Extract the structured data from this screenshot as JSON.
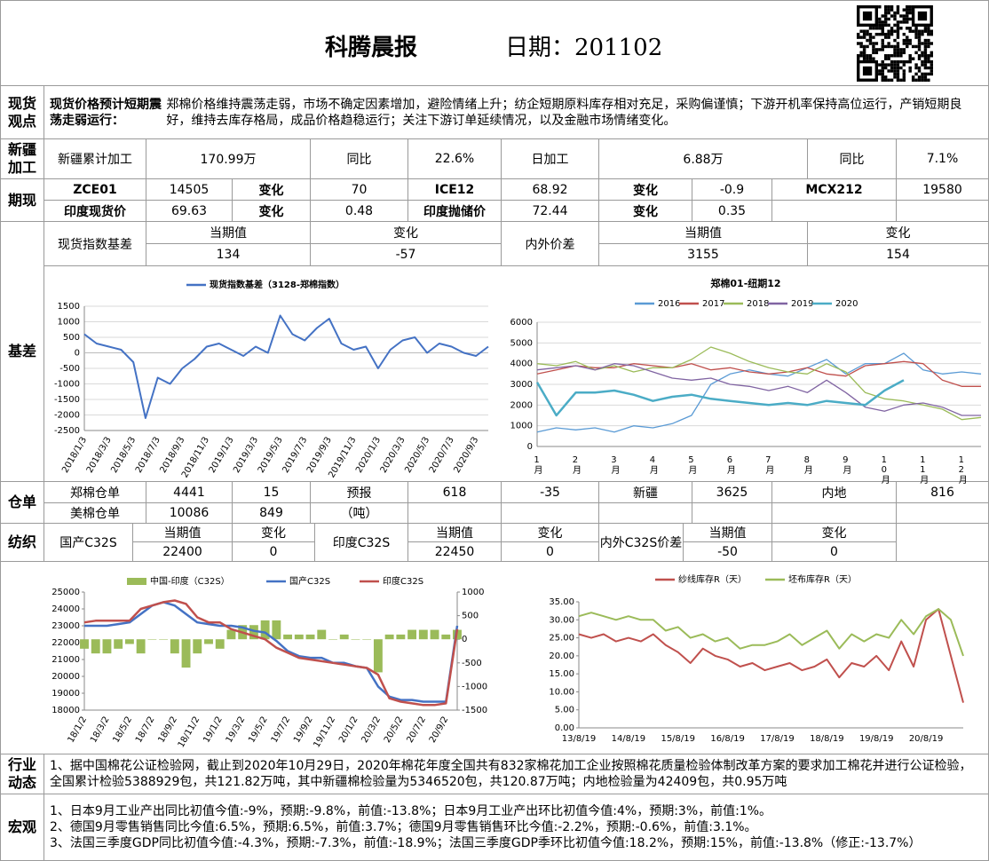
{
  "header": {
    "title": "科腾晨报",
    "date": "日期：201102"
  },
  "labels": {
    "spot": "现货观点",
    "xinjiang": "新疆加工",
    "futures": "期现",
    "basis": "基差",
    "warehouse": "仓单",
    "textile": "纺织",
    "industry": "行业动态",
    "macro": "宏观"
  },
  "spot_view": {
    "lead": "现货价格预计短期震荡走弱运行：",
    "text": "郑棉价格维持震荡走弱，市场不确定因素增加，避险情绪上升；纺企短期原料库存相对充足，采购偏谨慎；下游开机率保持高位运行，产销短期良好，维持去库存格局，成品价格趋稳运行；关注下游订单延续情况，以及金融市场情绪变化。"
  },
  "xinjiang": [
    "新疆累计加工",
    "170.99万",
    "同比",
    "22.6%",
    "日加工",
    "6.88万",
    "同比",
    "7.1%"
  ],
  "futures": [
    [
      "ZCE01",
      14505,
      "变化",
      70,
      "ICE12",
      68.92,
      "变化",
      -0.9,
      "MCX212",
      19580
    ],
    [
      "印度现货价",
      69.63,
      "变化",
      0.48,
      "印度抛储价",
      72.44,
      "变化",
      0.35
    ]
  ],
  "basis_table": {
    "spot": {
      "label": "现货指数基差",
      "current_label": "当期值",
      "current": 134,
      "change_label": "变化",
      "change": -57
    },
    "spread": {
      "label": "内外价差",
      "current_label": "当期值",
      "current": 3155,
      "change_label": "变化",
      "change": 154
    }
  },
  "warehouse": [
    [
      "郑棉仓单",
      4441,
      15,
      "预报",
      618,
      -35,
      "新疆",
      3625,
      "内地",
      816
    ],
    [
      "美棉仓单",
      10086,
      849,
      "（吨）"
    ]
  ],
  "textile": [
    {
      "label": "国产C32S",
      "current_label": "当期值",
      "current": 22400,
      "change_label": "变化",
      "change": 0
    },
    {
      "label": "印度C32S",
      "current_label": "当期值",
      "current": 22450,
      "change_label": "变化",
      "change": 0
    },
    {
      "label": "内外C32S价差",
      "current_label": "当期值",
      "current": -50,
      "change_label": "变化",
      "change": 0
    }
  ],
  "industry": "1、据中国棉花公证检验网，截止到2020年10月29日，2020年棉花年度全国共有832家棉花加工企业按照棉花质量检验体制改革方案的要求加工棉花并进行公证检验，全国累计检验5388929包，共121.82万吨，其中新疆棉检验量为5346520包，共120.87万吨；内地检验量为42409包，共0.95万吨",
  "macro": [
    "1、日本9月工业产出同比初值今值:-9%，预期:-9.8%，前值:-13.8%；日本9月工业产出环比初值今值:4%，预期:3%，前值:1%。",
    "2、德国9月零售销售同比今值:6.5%，预期:6.5%，前值:3.7%；德国9月零售销售环比今值:-2.2%，预期:-0.6%，前值:3.1%。",
    "3、法国三季度GDP同比初值今值:-4.3%，预期:-7.3%，前值:-18.9%；法国三季度GDP季环比初值今值:18.2%，预期:15%，前值:-13.8%（修正:-13.7%）"
  ],
  "chart_data": [
    {
      "type": "line",
      "grid": true,
      "categories": [
        "2018/1/3",
        null,
        "2018/3/3",
        null,
        "2018/5/3",
        null,
        "2018/7/3",
        null,
        "2018/9/3",
        null,
        "2018/11/3",
        null,
        "2019/1/3",
        null,
        "2019/3/3",
        null,
        "2019/5/3",
        null,
        "2019/7/3",
        null,
        "2019/9/3",
        null,
        "2019/11/3",
        null,
        "2020/1/3",
        null,
        "2020/3/3",
        null,
        "2020/5/3",
        null,
        "2020/7/3",
        null,
        "2020/9/3",
        null
      ],
      "series": [
        {
          "name": "现货指数基差（3128-郑棉指数）",
          "color": "#4472c4",
          "values": [
            600,
            300,
            200,
            100,
            -300,
            -2100,
            -800,
            -1000,
            -500,
            -200,
            200,
            300,
            100,
            -100,
            200,
            0,
            1200,
            600,
            400,
            800,
            1100,
            300,
            100,
            200,
            -500,
            100,
            400,
            500,
            0,
            300,
            200,
            0,
            -100,
            200
          ]
        }
      ],
      "ylim": [
        -2500,
        1500
      ],
      "yticks": [
        -2500,
        -2000,
        -1500,
        -1000,
        -500,
        0,
        500,
        1000,
        1500
      ]
    },
    {
      "type": "line",
      "grid": true,
      "title": "郑棉01-纽期12",
      "categories": [
        "1月",
        null,
        "2月",
        null,
        "3月",
        null,
        "4月",
        null,
        "5月",
        null,
        "6月",
        null,
        "7月",
        null,
        "8月",
        null,
        "9月",
        null,
        "10月",
        null,
        "11月",
        null,
        "12月",
        null
      ],
      "series": [
        {
          "name": "2016",
          "color": "#5b9bd5",
          "values": [
            700,
            900,
            800,
            900,
            700,
            1000,
            900,
            1100,
            1500,
            3000,
            3500,
            3700,
            3500,
            3400,
            3800,
            4200,
            3500,
            4000,
            4000,
            4500,
            3700,
            3500,
            3600,
            3500
          ]
        },
        {
          "name": "2017",
          "color": "#c0504d",
          "values": [
            3500,
            3700,
            3900,
            3800,
            3800,
            4000,
            3900,
            3800,
            4000,
            3700,
            3800,
            3600,
            3500,
            3600,
            3800,
            3500,
            3400,
            3900,
            4000,
            4100,
            4000,
            3200,
            2900,
            2900
          ]
        },
        {
          "name": "2018",
          "color": "#9bbb59",
          "values": [
            4000,
            3900,
            4100,
            3700,
            3900,
            3600,
            3800,
            3800,
            4200,
            4800,
            4500,
            4100,
            3800,
            3600,
            3500,
            4000,
            3600,
            2600,
            2300,
            2200,
            2000,
            1800,
            1300,
            1400
          ]
        },
        {
          "name": "2019",
          "color": "#8064a2",
          "values": [
            3700,
            3800,
            3900,
            3700,
            4000,
            3900,
            3600,
            3300,
            3200,
            3300,
            3000,
            2900,
            2700,
            2900,
            2600,
            3200,
            2600,
            1900,
            1700,
            2000,
            2100,
            1900,
            1500,
            1500
          ]
        },
        {
          "name": "2020",
          "color": "#4bacc6",
          "values": [
            3100,
            1500,
            2600,
            2600,
            2700,
            2500,
            2200,
            2400,
            2500,
            2300,
            2200,
            2100,
            2000,
            2100,
            2000,
            2200,
            2100,
            2000,
            2700,
            3200,
            null,
            null,
            null,
            null
          ]
        }
      ],
      "ylim": [
        0,
        6000
      ],
      "yticks": [
        0,
        1000,
        2000,
        3000,
        4000,
        5000,
        6000
      ]
    },
    {
      "type": "combo",
      "grid": false,
      "categories": [
        "18/1/2",
        null,
        "18/3/2",
        null,
        "18/5/2",
        null,
        "18/7/2",
        null,
        "18/9/2",
        null,
        "18/11/2",
        null,
        "19/1/2",
        null,
        "19/3/2",
        null,
        "19/5/2",
        null,
        "19/7/2",
        null,
        "19/9/2",
        null,
        "19/11/2",
        null,
        "20/1/2",
        null,
        "20/3/2",
        null,
        "20/5/2",
        null,
        "20/7/2",
        null,
        "20/9/2",
        null
      ],
      "series": [
        {
          "name": "中国-印度（C32S）",
          "color": "#9bbb59",
          "axis": "y2",
          "values": [
            -200,
            -300,
            -300,
            -200,
            -100,
            -300,
            0,
            0,
            -300,
            -600,
            -300,
            -100,
            -200,
            200,
            300,
            300,
            400,
            400,
            100,
            100,
            100,
            200,
            0,
            100,
            0,
            0,
            -700,
            100,
            100,
            200,
            200,
            200,
            100,
            200
          ]
        },
        {
          "name": "国产C32S",
          "color": "#4472c4",
          "values": [
            23000,
            23000,
            23000,
            23100,
            23200,
            23700,
            24200,
            24400,
            24200,
            23700,
            23200,
            23100,
            23000,
            23000,
            22900,
            22700,
            22600,
            22100,
            21500,
            21200,
            21100,
            21100,
            20800,
            20800,
            20600,
            20500,
            19400,
            18800,
            18600,
            18600,
            18500,
            18500,
            18500,
            23000
          ]
        },
        {
          "name": "印度C32S",
          "color": "#c0504d",
          "values": [
            23200,
            23300,
            23300,
            23300,
            23300,
            24000,
            24200,
            24400,
            24500,
            24300,
            23500,
            23200,
            23200,
            22800,
            22600,
            22400,
            22200,
            21700,
            21400,
            21100,
            21000,
            20900,
            20800,
            20700,
            20600,
            20500,
            20100,
            18700,
            18500,
            18400,
            18300,
            18300,
            18400,
            22800
          ]
        }
      ],
      "ylim": [
        18000,
        25000
      ],
      "yticks": [
        18000,
        19000,
        20000,
        21000,
        22000,
        23000,
        24000,
        25000
      ],
      "y2lim": [
        -1500,
        1000
      ],
      "y2ticks": [
        -1500,
        -1000,
        -500,
        0,
        500,
        1000
      ]
    },
    {
      "type": "line",
      "grid": false,
      "categories": [
        "13/8/19",
        null,
        null,
        null,
        "14/8/19",
        null,
        null,
        null,
        "15/8/19",
        null,
        null,
        null,
        "16/8/19",
        null,
        null,
        null,
        "17/8/19",
        null,
        null,
        null,
        "18/8/19",
        null,
        null,
        null,
        "19/8/19",
        null,
        null,
        null,
        "20/8/19",
        null,
        null,
        null
      ],
      "series": [
        {
          "name": "纱线库存R（天）",
          "color": "#c0504d",
          "values": [
            26,
            25,
            26,
            24,
            25,
            24,
            26,
            23,
            21,
            18,
            22,
            20,
            19,
            17,
            18,
            16,
            17,
            18,
            16,
            17,
            19,
            14,
            18,
            17,
            20,
            16,
            24,
            17,
            30,
            33,
            20,
            7
          ]
        },
        {
          "name": "坯布库存R（天）",
          "color": "#9bbb59",
          "values": [
            31,
            32,
            31,
            30,
            31,
            30,
            30,
            27,
            28,
            25,
            26,
            24,
            25,
            22,
            23,
            23,
            24,
            26,
            23,
            25,
            27,
            22,
            26,
            24,
            26,
            25,
            30,
            26,
            31,
            33,
            30,
            20
          ]
        }
      ],
      "ylim": [
        0,
        35
      ],
      "yticks": [
        {
          "value": 0,
          "label": "0.00"
        },
        {
          "value": 5,
          "label": "5.00"
        },
        {
          "value": 10,
          "label": "10.00"
        },
        {
          "value": 15,
          "label": "15.00"
        },
        {
          "value": 20,
          "label": "20.00"
        },
        {
          "value": 25,
          "label": "25.00"
        },
        {
          "value": 30,
          "label": "30.00"
        },
        {
          "value": 35,
          "label": "35.00"
        }
      ]
    }
  ]
}
